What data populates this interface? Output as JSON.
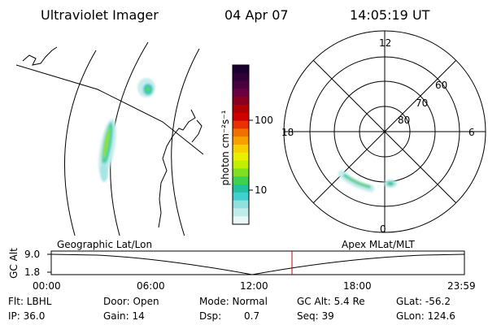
{
  "header": {
    "title": "Ultraviolet Imager",
    "date": "04 Apr 07",
    "time": "14:05:19 UT"
  },
  "colorbar": {
    "unit_label": "photon cm⁻²s⁻¹",
    "ticks": [
      "100",
      "10"
    ],
    "colors": [
      "#1a0030",
      "#300038",
      "#4a0040",
      "#6a0040",
      "#8a0020",
      "#b00000",
      "#d00000",
      "#e83000",
      "#f07000",
      "#f8a000",
      "#f8d000",
      "#e8f000",
      "#c0f000",
      "#80e020",
      "#40d050",
      "#20c0a0",
      "#40d0d0",
      "#90e0e0",
      "#c0ecec",
      "#e8f8f8"
    ],
    "colors_note": ""
  },
  "polar_plot": {
    "mlt_labels": {
      "top": "12",
      "left": "18",
      "right": "6",
      "bottom": "0"
    },
    "lat_labels": [
      "60",
      "70",
      "80"
    ]
  },
  "altitude_strip": {
    "axis_label": "GC Alt",
    "y_ticks": [
      "9.0",
      "1.8"
    ],
    "left_caption": "Geographic Lat/Lon",
    "right_caption": "Apex MLat/MLT",
    "time_ticks": [
      "00:00",
      "06:00",
      "12:00",
      "18:00",
      "23:59"
    ],
    "marker_color": "#c00000"
  },
  "info": {
    "filter": "Flt: LBHL",
    "door": "Door: Open",
    "mode": "Mode: Normal",
    "gc_alt": "GC Alt: 5.4 Re",
    "glat": "GLat: -56.2",
    "ip": "IP: 36.0",
    "gain": "Gain: 14",
    "dsp_label": "Dsp:",
    "dsp_value": "0.7",
    "seq": "Seq: 39",
    "glon": "GLon: 124.6"
  }
}
